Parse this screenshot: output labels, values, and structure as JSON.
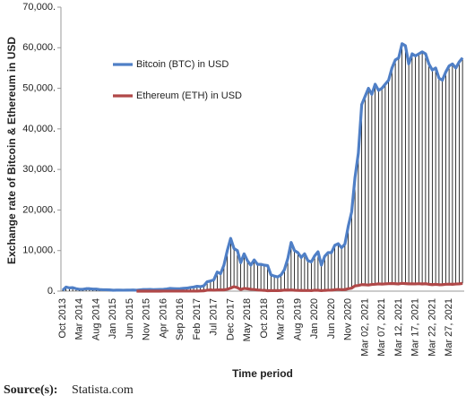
{
  "chart_data": {
    "type": "line",
    "y_label": "Exchange rate of Bitcoin & Ethereum in USD",
    "x_label": "Time period",
    "source_label": "Source(s):",
    "source": "Statista.com",
    "ylim": [
      0,
      70000
    ],
    "yticks": [
      {
        "value": 0,
        "label": "0."
      },
      {
        "value": 10000,
        "label": "10,000."
      },
      {
        "value": 20000,
        "label": "20,000."
      },
      {
        "value": 30000,
        "label": "30,000."
      },
      {
        "value": 40000,
        "label": "40,000."
      },
      {
        "value": 50000,
        "label": "50,000."
      },
      {
        "value": 60000,
        "label": "60,000."
      },
      {
        "value": 70000,
        "label": "70,000."
      }
    ],
    "hilo_color": "#000000",
    "categories": [
      "Oct 2013",
      null,
      null,
      null,
      null,
      "Mar 2014",
      null,
      null,
      null,
      null,
      "Aug 2014",
      null,
      null,
      null,
      null,
      "Jan 2015",
      null,
      null,
      null,
      null,
      "Jun 2015",
      null,
      null,
      null,
      null,
      "Nov 2015",
      null,
      null,
      null,
      null,
      "Apr 2016",
      null,
      null,
      null,
      null,
      "Sep 2016",
      null,
      null,
      null,
      null,
      "Feb 2017",
      null,
      null,
      null,
      null,
      "Jul 2017",
      null,
      null,
      null,
      null,
      "Dec 2017",
      null,
      null,
      null,
      null,
      "May 2018",
      null,
      null,
      null,
      null,
      "Oct 2018",
      null,
      null,
      null,
      null,
      "Mar 2019",
      null,
      null,
      null,
      null,
      "Aug 2019",
      null,
      null,
      null,
      null,
      "Jan 2020",
      null,
      null,
      null,
      null,
      "Jun 2020",
      null,
      null,
      null,
      null,
      "Nov 2020",
      null,
      null,
      null,
      null,
      "Mar 02, 2021",
      null,
      null,
      null,
      null,
      "Mar 07, 2021",
      null,
      null,
      null,
      null,
      "Mar 12, 2021",
      null,
      null,
      null,
      null,
      "Mar 17, 2021",
      null,
      null,
      null,
      null,
      "Mar 22, 2021",
      null,
      null,
      null,
      null,
      "Mar 27, 2021",
      null,
      null,
      null,
      null
    ],
    "series": [
      {
        "name": "Bitcoin (BTC) in USD",
        "color": "#4f7fc6",
        "values": [
          200,
          1000,
          800,
          850,
          600,
          450,
          450,
          600,
          600,
          500,
          500,
          400,
          350,
          350,
          300,
          220,
          250,
          250,
          230,
          240,
          260,
          280,
          230,
          320,
          380,
          400,
          430,
          370,
          400,
          420,
          450,
          530,
          670,
          620,
          580,
          610,
          700,
          740,
          900,
          1000,
          1200,
          1100,
          1300,
          2300,
          2500,
          2800,
          4700,
          4300,
          6400,
          10000,
          13000,
          10500,
          10000,
          7000,
          9200,
          7500,
          6400,
          7700,
          6600,
          6600,
          6400,
          6300,
          4000,
          3700,
          3500,
          4000,
          5300,
          8000,
          12000,
          10000,
          9500,
          8300,
          9200,
          7500,
          7200,
          8700,
          9700,
          6400,
          8600,
          9500,
          9500,
          11300,
          11700,
          10700,
          11600,
          16000,
          19500,
          28000,
          34000,
          46000,
          48000,
          50000,
          48500,
          51000,
          49500,
          50000,
          51000,
          52000,
          55000,
          57000,
          57500,
          61000,
          60500,
          56000,
          58500,
          58000,
          58500,
          59000,
          58500,
          56000,
          54500,
          55000,
          52500,
          52000,
          54000,
          55500,
          56000,
          55000,
          56500,
          57500
        ]
      },
      {
        "name": "Ethereum (ETH) in USD",
        "color": "#b04848",
        "values": [
          null,
          null,
          null,
          null,
          null,
          null,
          null,
          null,
          null,
          null,
          null,
          null,
          null,
          null,
          null,
          null,
          null,
          null,
          null,
          null,
          null,
          null,
          1,
          1,
          1,
          1,
          1,
          1,
          2,
          6,
          8,
          12,
          13,
          11,
          12,
          12,
          11,
          8,
          8,
          10,
          12,
          50,
          80,
          230,
          300,
          230,
          300,
          300,
          300,
          470,
          750,
          1100,
          860,
          400,
          670,
          580,
          450,
          400,
          290,
          230,
          200,
          110,
          130,
          140,
          135,
          170,
          270,
          250,
          290,
          220,
          180,
          170,
          150,
          180,
          130,
          230,
          220,
          130,
          200,
          230,
          230,
          340,
          430,
          350,
          380,
          600,
          730,
          1300,
          1400,
          1600,
          1570,
          1500,
          1650,
          1700,
          1800,
          1730,
          1790,
          1830,
          1870,
          1820,
          1770,
          1920,
          1850,
          1790,
          1810,
          1780,
          1830,
          1760,
          1820,
          1690,
          1600,
          1680,
          1580,
          1600,
          1700,
          1720,
          1680,
          1750,
          1800,
          1900
        ]
      }
    ]
  }
}
